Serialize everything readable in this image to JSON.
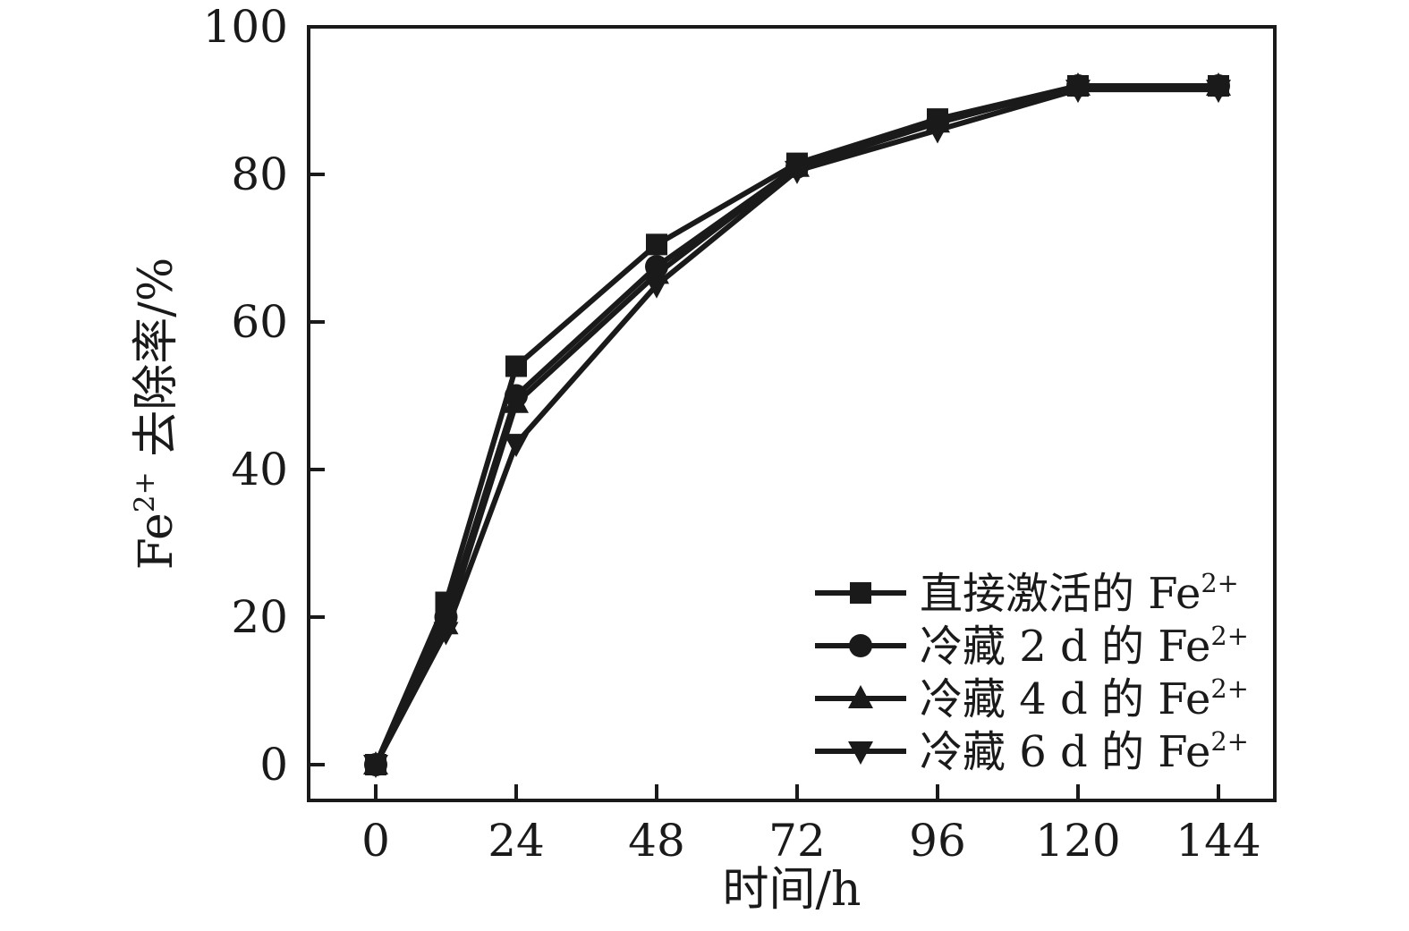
{
  "figure": {
    "background": "#ffffff",
    "ink_color": "#1a1a1a"
  },
  "chart_data": {
    "type": "line",
    "title": "",
    "xlabel": "时间/h",
    "ylabel": "Fe²⁺ 去除率/%",
    "x_tick_labels": [
      "0",
      "24",
      "48",
      "72",
      "96",
      "120",
      "144"
    ],
    "x_ticks": [
      0,
      24,
      48,
      72,
      96,
      120,
      144
    ],
    "y_tick_labels": [
      "0",
      "20",
      "40",
      "60",
      "80",
      "100"
    ],
    "y_ticks": [
      0,
      20,
      40,
      60,
      80,
      100
    ],
    "xlim": [
      -12,
      154
    ],
    "ylim": [
      -5,
      100
    ],
    "grid": false,
    "frame": "full-box",
    "tick_direction": "in",
    "legend_position": "inside-bottom-right",
    "x": [
      0,
      12,
      24,
      48,
      72,
      96,
      120,
      144
    ],
    "series": [
      {
        "name": "直接激活的 Fe²⁺",
        "marker": "square",
        "color": "#1a1a1a",
        "values": [
          0,
          22,
          54,
          70.5,
          81.5,
          87.5,
          92,
          92
        ]
      },
      {
        "name": "冷藏 2 d 的 Fe²⁺",
        "marker": "circle",
        "color": "#1a1a1a",
        "values": [
          0,
          20,
          50,
          67.5,
          81,
          87,
          92,
          92
        ]
      },
      {
        "name": "冷藏 4 d 的 Fe²⁺",
        "marker": "triangle-up",
        "color": "#1a1a1a",
        "values": [
          0,
          19,
          49,
          66.5,
          81,
          87,
          92,
          92
        ]
      },
      {
        "name": "冷藏 6 d 的 Fe²⁺",
        "marker": "triangle-down",
        "color": "#1a1a1a",
        "values": [
          0,
          18,
          43.5,
          65,
          80.5,
          86,
          91.5,
          91.5
        ]
      }
    ]
  }
}
